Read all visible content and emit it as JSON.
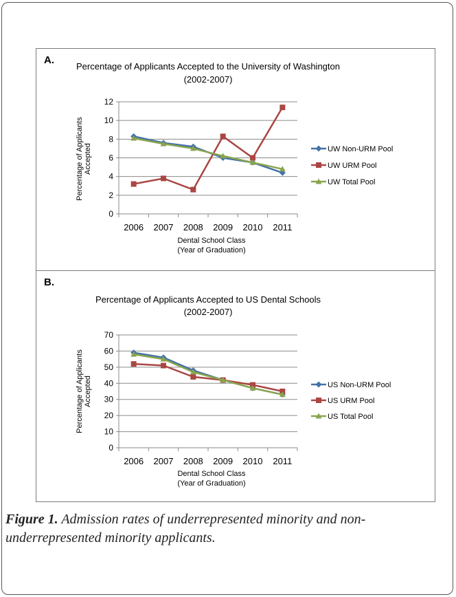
{
  "figure": {
    "caption_label": "Figure 1.",
    "caption_text": " Admission rates of underrepresented minority and non-underrepresented minority applicants."
  },
  "chart_data": [
    {
      "type": "line",
      "panel_label": "A.",
      "title": "Percentage of Applicants Accepted to the University of Washington",
      "subtitle": "(2002-2007)",
      "xlabel": "Dental School Class",
      "xlabel2": "(Year of Graduation)",
      "ylabel": "Percentage of Applicants",
      "ylabel2": "Accepted",
      "categories": [
        "2006",
        "2007",
        "2008",
        "2009",
        "2010",
        "2011"
      ],
      "ylim": [
        0,
        12
      ],
      "ystep": 2,
      "grid": true,
      "legend_position": "right",
      "series": [
        {
          "name": "UW Non-URM Pool",
          "color": "#4572A7",
          "marker": "diamond",
          "values": [
            8.3,
            7.6,
            7.2,
            6.0,
            5.5,
            4.4
          ]
        },
        {
          "name": "UW URM Pool",
          "color": "#AA4643",
          "marker": "square",
          "values": [
            3.2,
            3.8,
            2.6,
            8.3,
            6.0,
            11.4
          ]
        },
        {
          "name": "UW Total Pool",
          "color": "#89A54E",
          "marker": "triangle",
          "values": [
            8.1,
            7.5,
            7.0,
            6.2,
            5.5,
            4.8
          ]
        }
      ]
    },
    {
      "type": "line",
      "panel_label": "B.",
      "title": "Percentage of Applicants Accepted to US Dental Schools",
      "subtitle": "(2002-2007)",
      "xlabel": "Dental School Class",
      "xlabel2": "(Year of Graduation)",
      "ylabel": "Percentage of Applicants",
      "ylabel2": "Accepted",
      "categories": [
        "2006",
        "2007",
        "2008",
        "2009",
        "2010",
        "2011"
      ],
      "ylim": [
        0,
        70
      ],
      "ystep": 10,
      "grid": true,
      "legend_position": "right",
      "series": [
        {
          "name": "US Non-URM Pool",
          "color": "#4572A7",
          "marker": "diamond",
          "values": [
            59,
            56,
            48,
            42,
            37,
            33
          ]
        },
        {
          "name": "US URM Pool",
          "color": "#AA4643",
          "marker": "square",
          "values": [
            52,
            51,
            44,
            42,
            39,
            35
          ]
        },
        {
          "name": "US Total Pool",
          "color": "#89A54E",
          "marker": "triangle",
          "values": [
            58,
            55,
            47,
            42,
            37,
            33
          ]
        }
      ]
    }
  ]
}
